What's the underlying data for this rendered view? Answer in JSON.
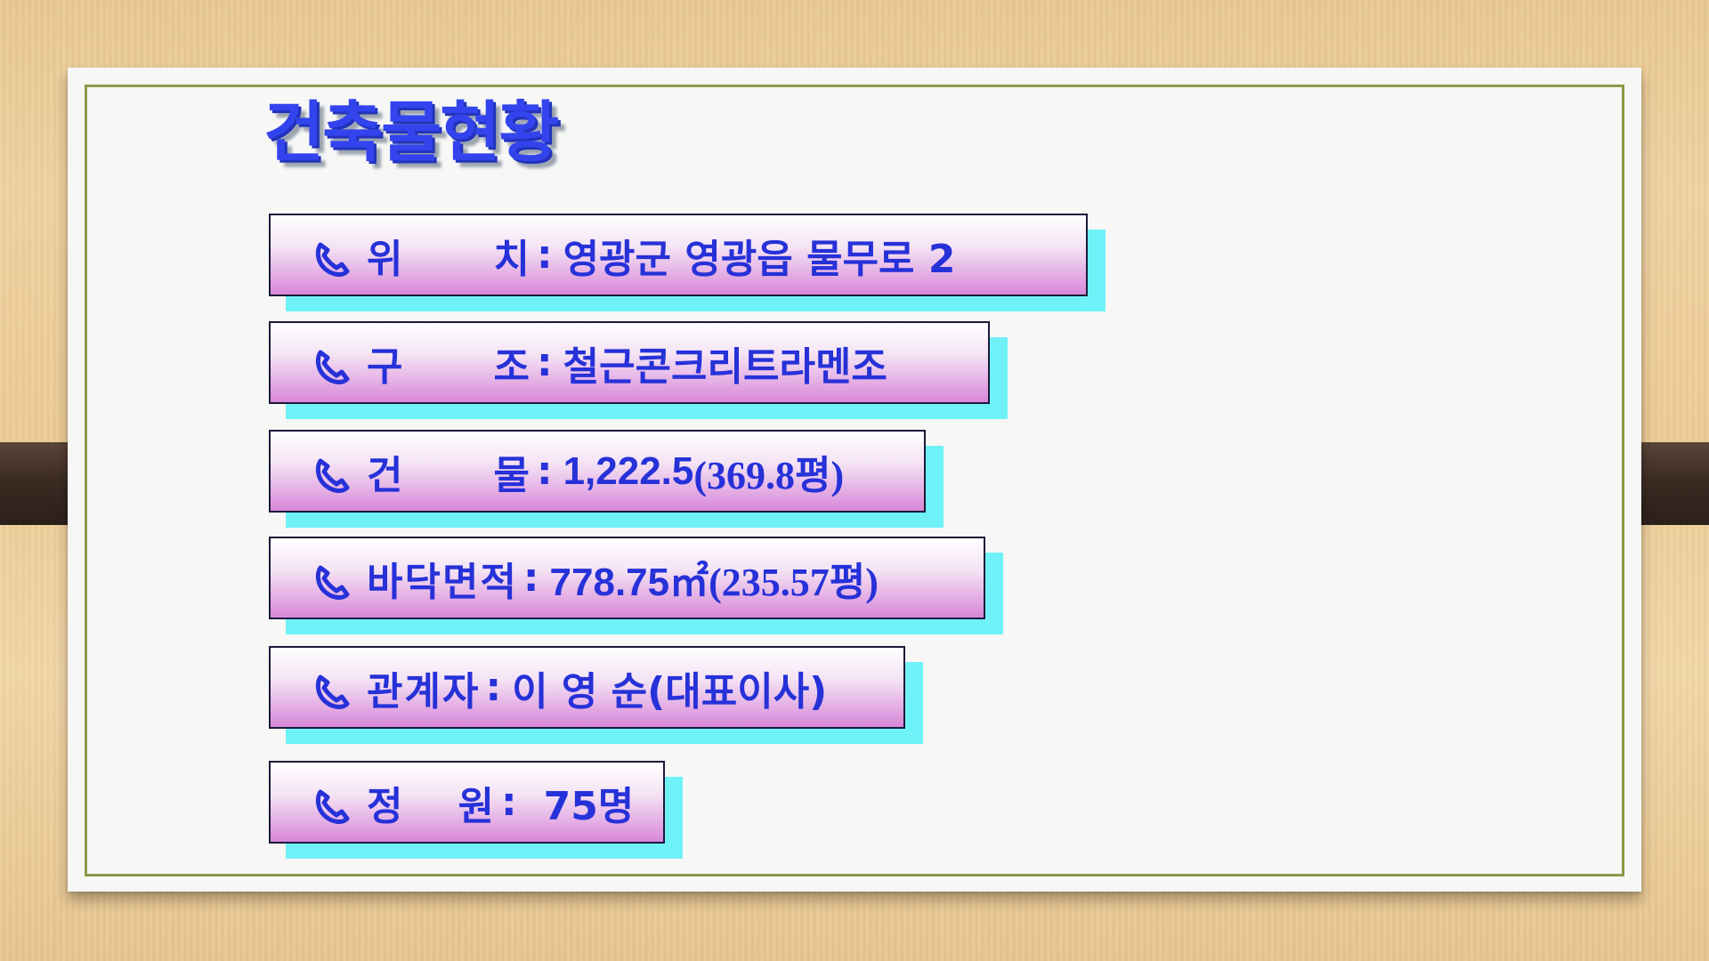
{
  "slide": {
    "title": "건축물현황",
    "bullet_icon": "phone-icon",
    "colors": {
      "text": "#2631d8",
      "title": "#3344ee",
      "row_shadow": "#6ff2f7",
      "row_gradient_bottom": "#d887d9",
      "frame": "#8b9a45"
    },
    "rows": [
      {
        "label_a": "위",
        "label_b": "치",
        "separator": ":",
        "value": "영광군 영광읍 물무로 2"
      },
      {
        "label_a": "구",
        "label_b": "조",
        "separator": ":",
        "value": "철근콘크리트라멘조"
      },
      {
        "label_a": "건",
        "label_b": "물",
        "separator": ":",
        "value_main": "1,222.5",
        "value_paren": "(369.8평)"
      },
      {
        "label": "바닥면적",
        "separator": ":",
        "value_main": "778.75㎡",
        "value_paren": "(235.57평)"
      },
      {
        "label": "관계자",
        "separator": ":",
        "value": "이 영 순(대표이사)"
      },
      {
        "label_a": "정",
        "label_b": "원",
        "separator": ":",
        "value": "75명"
      }
    ]
  }
}
